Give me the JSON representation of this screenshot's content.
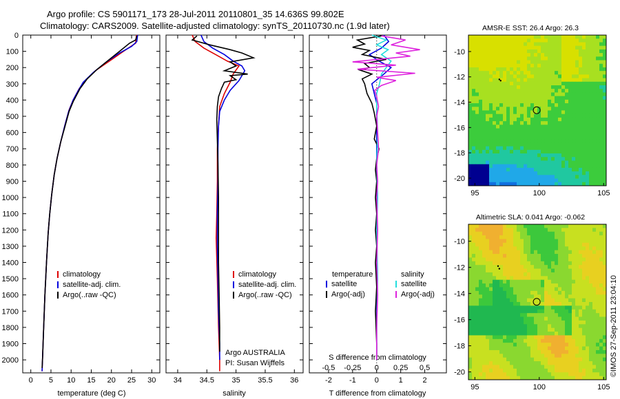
{
  "header": {
    "title_line1": "Argo profile: CS 5901171_173 28-Jul-2011 20110801_35 14.636S 99.802E",
    "title_line2": "Climatology: CARS2009. Satellite-adjusted climatology: synTS_20110730.nc (1.9d later)"
  },
  "colors": {
    "climatology": "#dd0000",
    "satellite": "#0000dd",
    "argo": "#000000",
    "sat_salinity": "#22dddd",
    "argo_salinity": "#dd22dd"
  },
  "chart_data": [
    {
      "type": "line",
      "name": "temperature-profile",
      "xlabel": "temperature (deg C)",
      "xlim": [
        -2,
        32
      ],
      "ylim": [
        2080,
        0
      ],
      "xticks": [
        "0",
        "5",
        "10",
        "15",
        "20",
        "25",
        "30"
      ],
      "yticks": [
        "0",
        "100",
        "200",
        "300",
        "400",
        "500",
        "600",
        "700",
        "800",
        "900",
        "1000",
        "1100",
        "1200",
        "1300",
        "1400",
        "1500",
        "1600",
        "1700",
        "1800",
        "1900",
        "2000"
      ],
      "legend": [
        "climatology",
        "satellite-adj. clim.",
        "Argo(..raw -QC)"
      ],
      "series": [
        {
          "name": "climatology",
          "color_key": "climatology",
          "points": [
            [
              26.2,
              0
            ],
            [
              26.0,
              50
            ],
            [
              23.0,
              100
            ],
            [
              19.5,
              160
            ],
            [
              16.0,
              220
            ],
            [
              13.5,
              280
            ],
            [
              12.0,
              330
            ],
            [
              10.5,
              400
            ],
            [
              9.5,
              460
            ],
            [
              8.5,
              550
            ],
            [
              7.5,
              650
            ],
            [
              6.5,
              760
            ],
            [
              5.8,
              860
            ],
            [
              5.2,
              980
            ],
            [
              4.7,
              1100
            ],
            [
              4.3,
              1220
            ],
            [
              3.9,
              1400
            ],
            [
              3.5,
              1600
            ],
            [
              3.2,
              1800
            ],
            [
              2.9,
              2000
            ],
            [
              2.8,
              2070
            ]
          ]
        },
        {
          "name": "satellite-adj. clim.",
          "color_key": "satellite",
          "points": [
            [
              26.5,
              0
            ],
            [
              26.3,
              40
            ],
            [
              25.0,
              70
            ],
            [
              22.0,
              110
            ],
            [
              18.5,
              170
            ],
            [
              15.5,
              230
            ],
            [
              13.0,
              290
            ],
            [
              11.8,
              340
            ],
            [
              10.5,
              400
            ],
            [
              9.4,
              470
            ],
            [
              8.4,
              560
            ],
            [
              7.4,
              660
            ],
            [
              6.5,
              760
            ],
            [
              5.8,
              860
            ],
            [
              5.2,
              980
            ],
            [
              4.7,
              1100
            ],
            [
              4.3,
              1220
            ],
            [
              3.9,
              1400
            ],
            [
              3.5,
              1600
            ],
            [
              3.2,
              1800
            ],
            [
              2.9,
              2000
            ],
            [
              2.8,
              2070
            ]
          ]
        },
        {
          "name": "Argo",
          "color_key": "argo",
          "points": [
            [
              26.3,
              5
            ],
            [
              26.0,
              30
            ],
            [
              24.5,
              50
            ],
            [
              22.0,
              100
            ],
            [
              19.0,
              160
            ],
            [
              16.5,
              210
            ],
            [
              14.0,
              270
            ],
            [
              12.2,
              330
            ],
            [
              10.5,
              410
            ],
            [
              9.5,
              470
            ],
            [
              8.5,
              560
            ],
            [
              7.4,
              660
            ],
            [
              6.5,
              760
            ],
            [
              5.8,
              860
            ],
            [
              5.2,
              980
            ],
            [
              4.7,
              1100
            ],
            [
              4.3,
              1220
            ],
            [
              3.9,
              1400
            ],
            [
              3.5,
              1600
            ],
            [
              3.2,
              1800
            ],
            [
              2.9,
              2000
            ],
            [
              2.8,
              2050
            ]
          ]
        }
      ]
    },
    {
      "type": "line",
      "name": "salinity-profile",
      "xlabel": "salinity",
      "xlim": [
        33.8,
        36.15
      ],
      "ylim": [
        2080,
        0
      ],
      "xticks": [
        "34",
        "34.5",
        "35",
        "35.5",
        "36"
      ],
      "legend": [
        "climatology",
        "satellite-adj. clim.",
        "Argo(..raw -QC)"
      ],
      "annotation_line1": "Argo AUSTRALIA",
      "annotation_line2": "PI: Susan Wijffels",
      "series": [
        {
          "name": "climatology",
          "color_key": "climatology",
          "points": [
            [
              34.25,
              0
            ],
            [
              34.3,
              40
            ],
            [
              34.45,
              80
            ],
            [
              34.65,
              120
            ],
            [
              34.85,
              160
            ],
            [
              35.05,
              190
            ],
            [
              34.95,
              240
            ],
            [
              34.9,
              290
            ],
            [
              34.8,
              360
            ],
            [
              34.72,
              440
            ],
            [
              34.7,
              560
            ],
            [
              34.68,
              700
            ],
            [
              34.68,
              900
            ],
            [
              34.67,
              1100
            ],
            [
              34.66,
              1250
            ],
            [
              34.68,
              1500
            ],
            [
              34.7,
              1800
            ],
            [
              34.72,
              2000
            ],
            [
              34.72,
              2070
            ]
          ]
        },
        {
          "name": "satellite-adj. clim.",
          "color_key": "satellite",
          "points": [
            [
              34.4,
              0
            ],
            [
              34.45,
              40
            ],
            [
              34.6,
              80
            ],
            [
              34.8,
              120
            ],
            [
              34.95,
              160
            ],
            [
              35.1,
              190
            ],
            [
              35.15,
              220
            ],
            [
              35.05,
              280
            ],
            [
              34.9,
              340
            ],
            [
              34.8,
              400
            ],
            [
              34.72,
              470
            ],
            [
              34.7,
              560
            ],
            [
              34.69,
              700
            ],
            [
              34.69,
              900
            ],
            [
              34.68,
              1100
            ],
            [
              34.68,
              1300
            ],
            [
              34.69,
              1500
            ],
            [
              34.7,
              1700
            ],
            [
              34.72,
              1900
            ],
            [
              34.72,
              2000
            ]
          ]
        },
        {
          "name": "Argo",
          "color_key": "argo",
          "points": [
            [
              34.33,
              5
            ],
            [
              34.25,
              30
            ],
            [
              34.55,
              60
            ],
            [
              34.9,
              90
            ],
            [
              35.1,
              110
            ],
            [
              35.3,
              140
            ],
            [
              34.9,
              165
            ],
            [
              35.0,
              190
            ],
            [
              34.8,
              220
            ],
            [
              35.2,
              240
            ],
            [
              34.9,
              250
            ],
            [
              35.0,
              275
            ],
            [
              34.8,
              290
            ],
            [
              34.75,
              330
            ],
            [
              34.7,
              380
            ],
            [
              34.68,
              440
            ],
            [
              34.67,
              520
            ],
            [
              34.68,
              650
            ],
            [
              34.69,
              800
            ],
            [
              34.7,
              1000
            ],
            [
              34.7,
              1200
            ],
            [
              34.7,
              1400
            ],
            [
              34.71,
              1600
            ],
            [
              34.72,
              1800
            ],
            [
              34.72,
              1950
            ]
          ]
        }
      ]
    },
    {
      "type": "line",
      "name": "difference-profile",
      "xlabel": "T difference from climatology",
      "xlabel_top": "S difference from climatology",
      "xlim": [
        -2.8,
        2.9
      ],
      "ylim": [
        2080,
        0
      ],
      "xticks": [
        "-2",
        "-1",
        "0",
        "1",
        "2"
      ],
      "xticks_s": [
        "-0.5",
        "-0.25",
        "0",
        "0.25",
        "0.5"
      ],
      "legend_temperature": {
        "title": "temperature",
        "items": [
          "satellite",
          "Argo(-adj)"
        ]
      },
      "legend_salinity": {
        "title": "salinity",
        "items": [
          "satellite",
          "Argo(-adj)"
        ]
      },
      "series": [
        {
          "name": "T satellite",
          "color_key": "satellite",
          "points": [
            [
              0.3,
              0
            ],
            [
              0.5,
              40
            ],
            [
              0.2,
              80
            ],
            [
              -0.3,
              120
            ],
            [
              0.1,
              160
            ],
            [
              0.6,
              200
            ],
            [
              0.3,
              240
            ],
            [
              -0.2,
              300
            ],
            [
              -0.1,
              360
            ],
            [
              0,
              420
            ],
            [
              0,
              520
            ],
            [
              0,
              700
            ],
            [
              0,
              900
            ],
            [
              0,
              1100
            ],
            [
              0,
              1300
            ],
            [
              0,
              1500
            ],
            [
              0,
              1700
            ],
            [
              0,
              1900
            ],
            [
              0,
              2000
            ]
          ]
        },
        {
          "name": "T Argo",
          "color_key": "argo",
          "points": [
            [
              0.2,
              5
            ],
            [
              -0.8,
              30
            ],
            [
              -0.5,
              55
            ],
            [
              -1.0,
              75
            ],
            [
              -0.3,
              95
            ],
            [
              -0.6,
              120
            ],
            [
              0.4,
              150
            ],
            [
              -0.5,
              175
            ],
            [
              -0.3,
              200
            ],
            [
              -0.7,
              215
            ],
            [
              -0.2,
              240
            ],
            [
              -0.6,
              270
            ],
            [
              -0.5,
              300
            ],
            [
              -0.4,
              360
            ],
            [
              -0.2,
              420
            ],
            [
              -0.1,
              480
            ],
            [
              0,
              560
            ],
            [
              -0.1,
              640
            ],
            [
              0.1,
              700
            ],
            [
              0,
              760
            ],
            [
              -0.05,
              830
            ],
            [
              0,
              900
            ],
            [
              -0.05,
              1000
            ],
            [
              0,
              1100
            ],
            [
              -0.05,
              1200
            ],
            [
              0,
              1300
            ],
            [
              -0.05,
              1400
            ],
            [
              0,
              1550
            ],
            [
              -0.05,
              1700
            ],
            [
              0,
              1900
            ],
            [
              0,
              2000
            ]
          ]
        },
        {
          "name": "S satellite",
          "color_key": "sat_salinity",
          "points": [
            [
              -0.05,
              0
            ],
            [
              0.1,
              30
            ],
            [
              0.0,
              60
            ],
            [
              0.12,
              90
            ],
            [
              0.05,
              120
            ],
            [
              0.15,
              160
            ],
            [
              0.1,
              200
            ],
            [
              0.05,
              240
            ],
            [
              0.03,
              300
            ],
            [
              0.0,
              360
            ],
            [
              0.0,
              450
            ],
            [
              0.01,
              600
            ],
            [
              0.0,
              800
            ],
            [
              0.01,
              1000
            ],
            [
              0.0,
              1200
            ],
            [
              0.01,
              1500
            ],
            [
              0.0,
              1800
            ],
            [
              0.0,
              2000
            ]
          ]
        },
        {
          "name": "S Argo",
          "color_key": "argo_salinity",
          "points": [
            [
              0.05,
              5
            ],
            [
              0.3,
              30
            ],
            [
              0.15,
              60
            ],
            [
              0.45,
              90
            ],
            [
              0.2,
              110
            ],
            [
              0.35,
              130
            ],
            [
              -0.25,
              165
            ],
            [
              0.2,
              185
            ],
            [
              -0.2,
              210
            ],
            [
              0.4,
              235
            ],
            [
              0.0,
              260
            ],
            [
              0.2,
              280
            ],
            [
              0.05,
              310
            ],
            [
              -0.02,
              340
            ],
            [
              0.0,
              380
            ],
            [
              0.02,
              440
            ],
            [
              0.0,
              500
            ],
            [
              0.01,
              600
            ],
            [
              0.02,
              700
            ],
            [
              0.0,
              800
            ],
            [
              0.01,
              900
            ],
            [
              0.0,
              1000
            ],
            [
              0.01,
              1200
            ],
            [
              0.0,
              1400
            ],
            [
              0.01,
              1600
            ],
            [
              0.0,
              1800
            ],
            [
              0.0,
              2000
            ]
          ]
        }
      ]
    },
    {
      "type": "heatmap",
      "name": "sst-map",
      "title": "AMSR-E SST: 26.4 Argo: 26.3",
      "xlim": [
        94.5,
        105.2
      ],
      "ylim": [
        -20.6,
        -8.7
      ],
      "xticks": [
        "95",
        "100",
        "105"
      ],
      "yticks": [
        "-10",
        "-12",
        "-14",
        "-16",
        "-18",
        "-20"
      ],
      "argo_location": [
        99.802,
        -14.636
      ],
      "track_points": [
        [
          96.9,
          -12.2
        ],
        [
          97.0,
          -12.3
        ]
      ]
    },
    {
      "type": "heatmap",
      "name": "sla-map",
      "title": "Altimetric SLA: 0.041 Argo: -0.062",
      "xlim": [
        94.5,
        105.2
      ],
      "ylim": [
        -20.6,
        -8.7
      ],
      "xticks": [
        "95",
        "100",
        "105"
      ],
      "yticks": [
        "-10",
        "-12",
        "-14",
        "-16",
        "-18",
        "-20"
      ],
      "argo_location": [
        99.802,
        -14.636
      ],
      "track_points": [
        [
          96.9,
          -12.1
        ],
        [
          96.8,
          -11.9
        ]
      ]
    }
  ],
  "footer": {
    "credit": "©IMOS 27-Sep-2011 23:04:10"
  }
}
